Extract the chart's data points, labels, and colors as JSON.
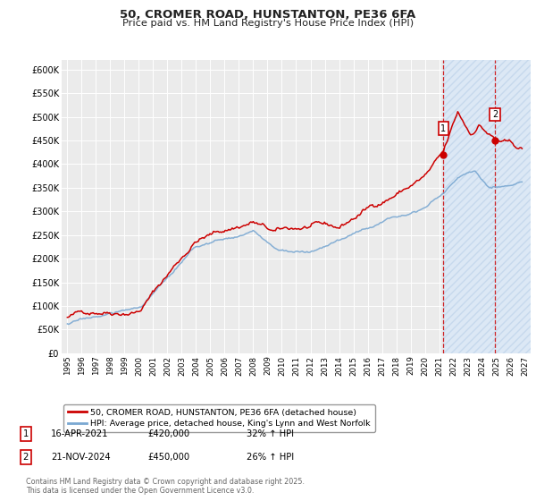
{
  "title": "50, CROMER ROAD, HUNSTANTON, PE36 6FA",
  "subtitle": "Price paid vs. HM Land Registry's House Price Index (HPI)",
  "ylim": [
    0,
    620000
  ],
  "yticks": [
    0,
    50000,
    100000,
    150000,
    200000,
    250000,
    300000,
    350000,
    400000,
    450000,
    500000,
    550000,
    600000
  ],
  "ytick_labels": [
    "£0",
    "£50K",
    "£100K",
    "£150K",
    "£200K",
    "£250K",
    "£300K",
    "£350K",
    "£400K",
    "£450K",
    "£500K",
    "£550K",
    "£600K"
  ],
  "xlim_start": 1994.6,
  "xlim_end": 2027.4,
  "xticks": [
    1995,
    1996,
    1997,
    1998,
    1999,
    2000,
    2001,
    2002,
    2003,
    2004,
    2005,
    2006,
    2007,
    2008,
    2009,
    2010,
    2011,
    2012,
    2013,
    2014,
    2015,
    2016,
    2017,
    2018,
    2019,
    2020,
    2021,
    2022,
    2023,
    2024,
    2025,
    2026,
    2027
  ],
  "background_color": "#ffffff",
  "plot_bg_color": "#ebebeb",
  "grid_color": "#ffffff",
  "red_line_color": "#cc0000",
  "blue_line_color": "#7aa8d2",
  "sale1_year": 2021.29,
  "sale1_price": 420000,
  "sale1_label": "1",
  "sale2_year": 2024.9,
  "sale2_price": 450000,
  "sale2_label": "2",
  "legend_line1": "50, CROMER ROAD, HUNSTANTON, PE36 6FA (detached house)",
  "legend_line2": "HPI: Average price, detached house, King's Lynn and West Norfolk",
  "annotation1_date": "16-APR-2021",
  "annotation1_price": "£420,000",
  "annotation1_hpi": "32% ↑ HPI",
  "annotation2_date": "21-NOV-2024",
  "annotation2_price": "£450,000",
  "annotation2_hpi": "26% ↑ HPI",
  "footer": "Contains HM Land Registry data © Crown copyright and database right 2025.\nThis data is licensed under the Open Government Licence v3.0.",
  "shade_fill_color": "#dce8f5",
  "shade_hatch_color": "#b8cfe8",
  "vline_color": "#cc0000",
  "shade_start": 2021.29,
  "shade_end": 2027.4
}
